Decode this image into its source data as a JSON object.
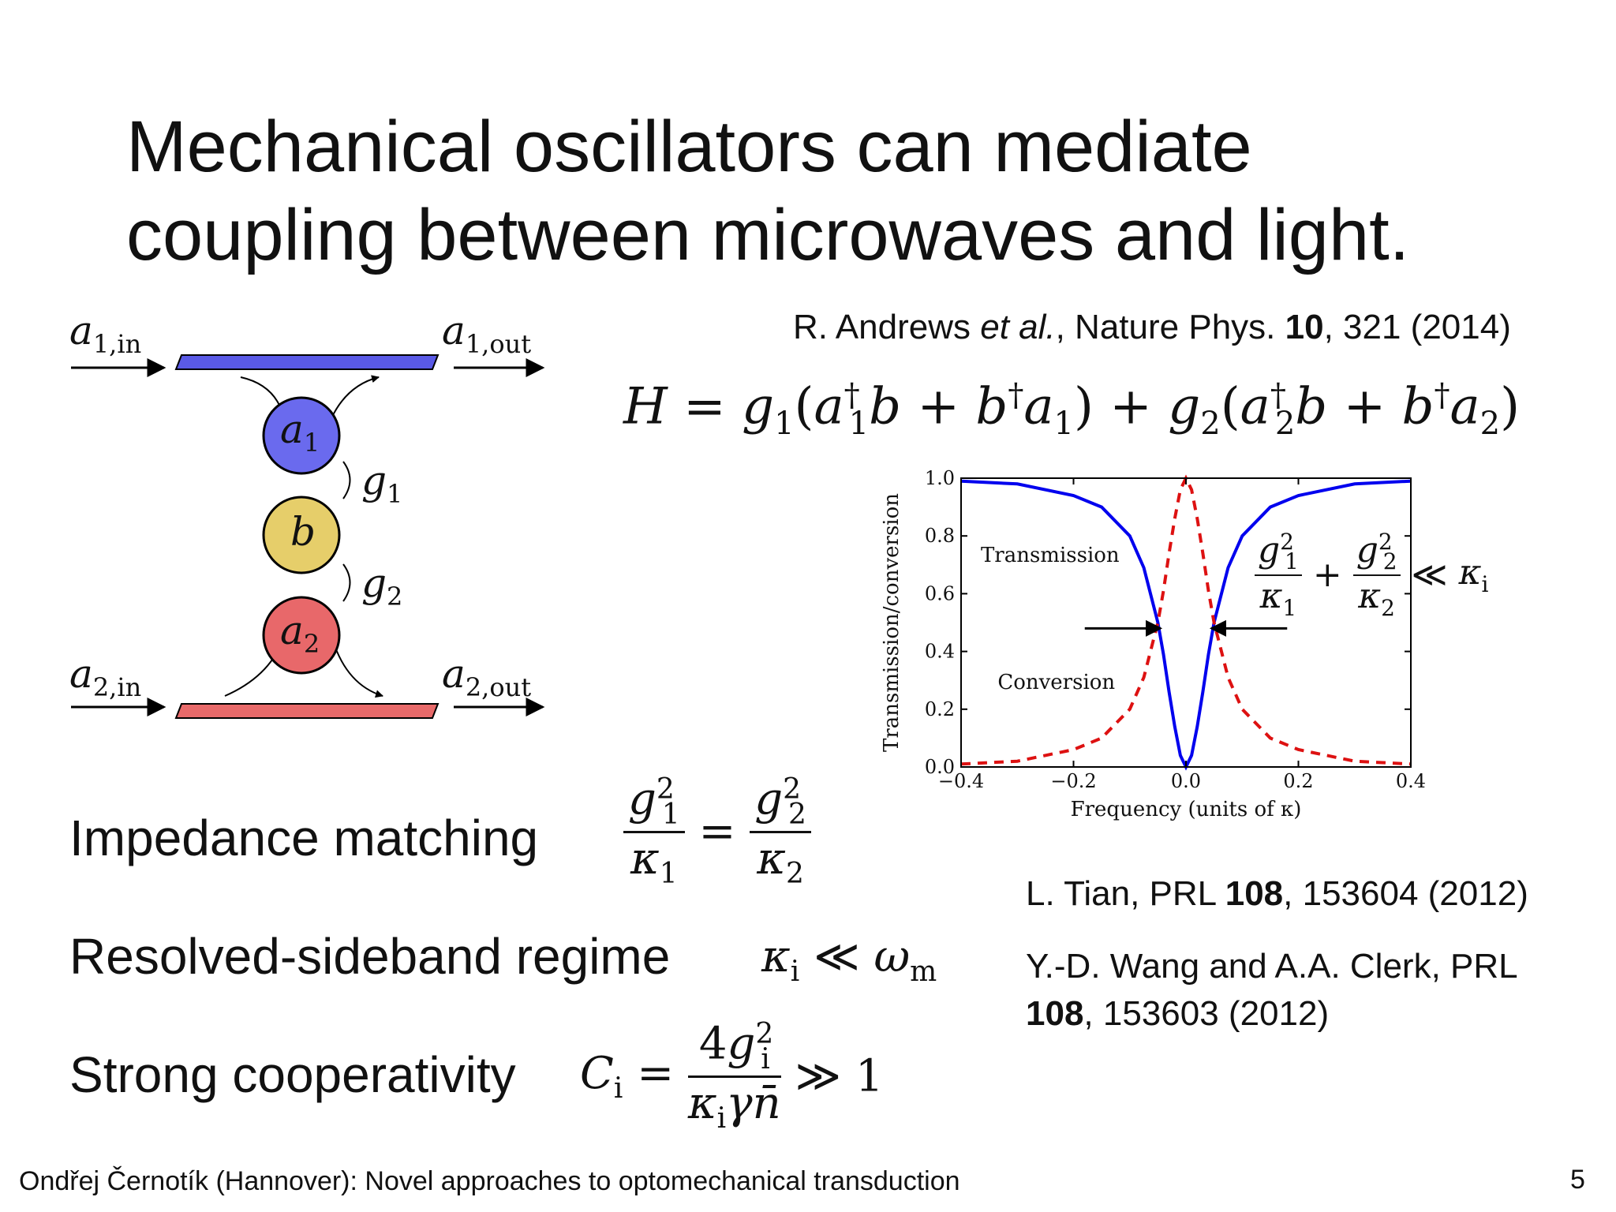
{
  "slide": {
    "title_line1": "Mechanical oscillators can mediate",
    "title_line2": "coupling between microwaves and light.",
    "page_number": "5",
    "footer": "Ondřej Černotík (Hannover): Novel approaches to optomechanical transduction"
  },
  "diagram": {
    "a1_in": "a1,in",
    "a1_out": "a1,out",
    "a2_in": "a2,in",
    "a2_out": "a2,out",
    "mode_a1": "a1",
    "mode_b": "b",
    "mode_a2": "a2",
    "coupling_g1": "g1",
    "coupling_g2": "g2",
    "colors": {
      "a1": "#6a6aee",
      "b": "#e6ce6a",
      "a2": "#e8686a",
      "wg1": "#5a5ae6",
      "wg2": "#e86a6a"
    }
  },
  "references": {
    "andrews_prefix": "R. Andrews ",
    "andrews_etal": "et al.",
    "andrews_journal": ", Nature Phys. ",
    "andrews_vol": "10",
    "andrews_rest": ", 321 (2014)",
    "tian_prefix": "L. Tian, PRL ",
    "tian_vol": "108",
    "tian_rest": ", 153604 (2012)",
    "wang_line1": "Y.-D. Wang and A.A. Clerk, PRL",
    "wang_vol": "108",
    "wang_rest": ", 153603 (2012)"
  },
  "conditions": {
    "impedance": "Impedance matching",
    "sideband": "Resolved-sideband regime",
    "cooperativity": "Strong cooperativity"
  },
  "chart_data": {
    "type": "line",
    "xlabel": "Frequency (units of κ)",
    "ylabel": "Transmission/conversion",
    "xlim": [
      -0.4,
      0.4
    ],
    "ylim": [
      0.0,
      1.0
    ],
    "x_ticks": [
      "−0.4",
      "−0.2",
      "0.0",
      "0.2",
      "0.4"
    ],
    "y_ticks": [
      "0.0",
      "0.2",
      "0.4",
      "0.6",
      "0.8",
      "1.0"
    ],
    "grid": false,
    "annotations": {
      "transmission": "Transmission",
      "conversion": "Conversion"
    },
    "series": [
      {
        "name": "Transmission",
        "color": "#0000ee",
        "style": "solid",
        "x": [
          -0.4,
          -0.3,
          -0.2,
          -0.15,
          -0.1,
          -0.075,
          -0.05,
          -0.04,
          -0.03,
          -0.02,
          -0.01,
          0,
          0.01,
          0.02,
          0.03,
          0.04,
          0.05,
          0.075,
          0.1,
          0.15,
          0.2,
          0.3,
          0.4
        ],
        "values": [
          0.99,
          0.98,
          0.94,
          0.9,
          0.8,
          0.69,
          0.5,
          0.39,
          0.26,
          0.14,
          0.04,
          0.0,
          0.04,
          0.14,
          0.26,
          0.39,
          0.5,
          0.69,
          0.8,
          0.9,
          0.94,
          0.98,
          0.99
        ]
      },
      {
        "name": "Conversion",
        "color": "#dd1111",
        "style": "dashed",
        "x": [
          -0.4,
          -0.3,
          -0.2,
          -0.15,
          -0.1,
          -0.075,
          -0.05,
          -0.04,
          -0.03,
          -0.02,
          -0.01,
          0,
          0.01,
          0.02,
          0.03,
          0.04,
          0.05,
          0.075,
          0.1,
          0.15,
          0.2,
          0.3,
          0.4
        ],
        "values": [
          0.01,
          0.02,
          0.06,
          0.1,
          0.2,
          0.31,
          0.5,
          0.61,
          0.74,
          0.86,
          0.96,
          1.0,
          0.96,
          0.86,
          0.74,
          0.61,
          0.5,
          0.31,
          0.2,
          0.1,
          0.06,
          0.02,
          0.01
        ]
      }
    ]
  }
}
